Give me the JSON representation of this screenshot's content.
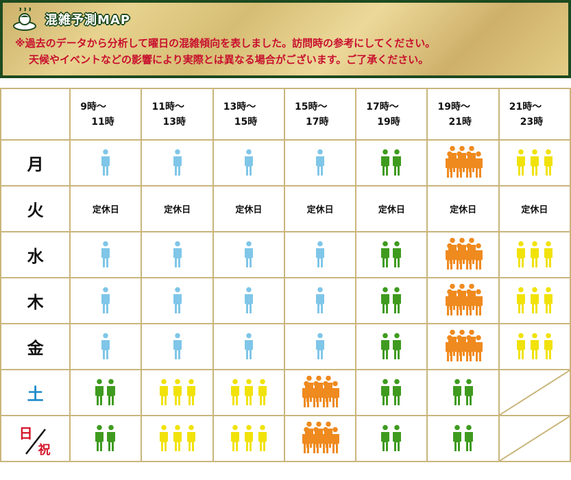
{
  "header": {
    "title": "混雑予測MAP",
    "note_line1": "※過去のデータから分析して曜日の混雑傾向を表しました。訪問時の参考にしてください。",
    "note_line2": "天候やイベントなどの影響により実際とは異なる場合がございます。ご了承ください。"
  },
  "colors": {
    "level1": "#7fc6e8",
    "level2": "#3f9b1f",
    "level3": "#f1e20a",
    "level4": "#ef8a1f",
    "border": "#c9b57a",
    "header_frame": "#1d4a1f"
  },
  "time_slots": [
    {
      "from": "9時～",
      "to": "11時"
    },
    {
      "from": "11時～",
      "to": "13時"
    },
    {
      "from": "13時～",
      "to": "15時"
    },
    {
      "from": "15時～",
      "to": "17時"
    },
    {
      "from": "17時～",
      "to": "19時"
    },
    {
      "from": "19時～",
      "to": "21時"
    },
    {
      "from": "21時～",
      "to": "23時"
    }
  ],
  "closed_label": "定休日",
  "days": [
    {
      "label": "月",
      "levels": [
        1,
        1,
        1,
        1,
        2,
        4,
        3
      ]
    },
    {
      "label": "火",
      "levels": [
        "closed",
        "closed",
        "closed",
        "closed",
        "closed",
        "closed",
        "closed"
      ]
    },
    {
      "label": "水",
      "levels": [
        1,
        1,
        1,
        1,
        2,
        4,
        3
      ]
    },
    {
      "label": "木",
      "levels": [
        1,
        1,
        1,
        1,
        2,
        4,
        3
      ]
    },
    {
      "label": "金",
      "levels": [
        1,
        1,
        1,
        1,
        2,
        4,
        3
      ]
    },
    {
      "label": "土",
      "levels": [
        2,
        3,
        3,
        4,
        2,
        2,
        "none"
      ]
    },
    {
      "label_top": "日",
      "label_bottom": "祝",
      "levels": [
        2,
        3,
        3,
        4,
        2,
        2,
        "none"
      ]
    }
  ]
}
